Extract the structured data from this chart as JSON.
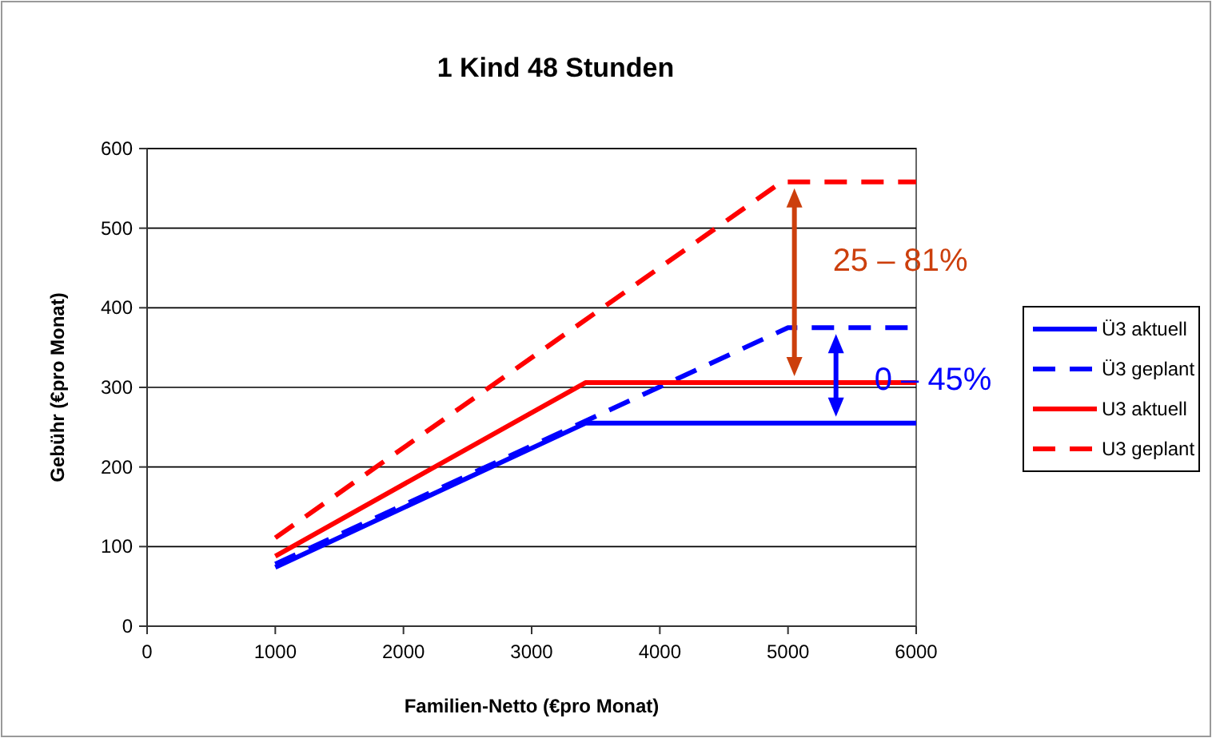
{
  "chart_data": {
    "type": "line",
    "title": "1 Kind 48 Stunden",
    "xlabel": "Familien-Netto (€pro Monat)",
    "ylabel": "Gebühr (€pro Monat)",
    "xlim": [
      0,
      6000
    ],
    "xticks": [
      0,
      1000,
      2000,
      3000,
      4000,
      5000,
      6000
    ],
    "ylim": [
      0,
      600
    ],
    "yticks": [
      0,
      100,
      200,
      300,
      400,
      500,
      600
    ],
    "grid": "y",
    "legend": "right",
    "marker": "none",
    "series": [
      {
        "name": "Ü3 aktuell",
        "color": "#0000ff",
        "line_style": "solid",
        "x": [
          1000,
          3420,
          6000
        ],
        "values": [
          74,
          255,
          255
        ]
      },
      {
        "name": "Ü3 geplant",
        "color": "#0000ff",
        "line_style": "dashed",
        "x": [
          1000,
          5000,
          6000
        ],
        "values": [
          78,
          375,
          375
        ]
      },
      {
        "name": "U3 aktuell",
        "color": "#ff0000",
        "line_style": "solid",
        "x": [
          1000,
          3420,
          6000
        ],
        "values": [
          88,
          306,
          306
        ]
      },
      {
        "name": "U3 geplant",
        "color": "#ff0000",
        "line_style": "dashed",
        "x": [
          1000,
          4950,
          6000
        ],
        "values": [
          111,
          558,
          558
        ]
      }
    ],
    "annotations": [
      "25 – 81%",
      "0 – 45%"
    ]
  }
}
